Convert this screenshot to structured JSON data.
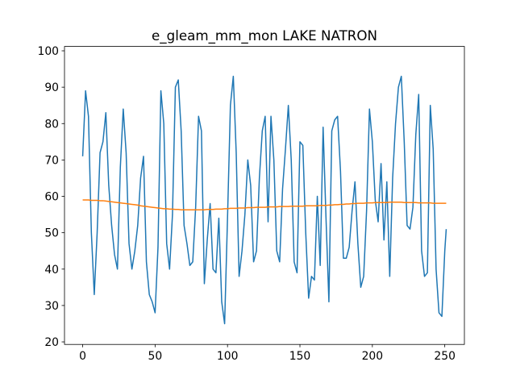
{
  "chart_data": {
    "type": "line",
    "title": "e_gleam_mm_mon LAKE NATRON",
    "x": [
      0,
      2,
      4,
      6,
      8,
      10,
      12,
      14,
      16,
      18,
      20,
      22,
      24,
      26,
      28,
      30,
      32,
      34,
      36,
      38,
      40,
      42,
      44,
      46,
      48,
      50,
      52,
      54,
      56,
      58,
      60,
      62,
      64,
      66,
      68,
      70,
      72,
      74,
      76,
      78,
      80,
      82,
      84,
      86,
      88,
      90,
      92,
      94,
      96,
      98,
      100,
      102,
      104,
      106,
      108,
      110,
      112,
      114,
      116,
      118,
      120,
      122,
      124,
      126,
      128,
      130,
      132,
      134,
      136,
      138,
      140,
      142,
      144,
      146,
      148,
      150,
      152,
      154,
      156,
      158,
      160,
      162,
      164,
      166,
      168,
      170,
      172,
      174,
      176,
      178,
      180,
      182,
      184,
      186,
      188,
      190,
      192,
      194,
      196,
      198,
      200,
      202,
      204,
      206,
      208,
      210,
      212,
      214,
      216,
      218,
      220,
      222,
      224,
      226,
      228,
      230,
      232,
      234,
      236,
      238,
      240,
      242,
      244,
      246,
      248,
      250,
      251
    ],
    "series": [
      {
        "color": "#1f77b4",
        "values": [
          71,
          89,
          82,
          50,
          33,
          50,
          72,
          75,
          83,
          63,
          52,
          44,
          40,
          68,
          84,
          72,
          47,
          40,
          45,
          52,
          65,
          71,
          42,
          33,
          31,
          28,
          46,
          89,
          80,
          47,
          40,
          55,
          90,
          92,
          78,
          52,
          47,
          41,
          42,
          57,
          82,
          78,
          36,
          48,
          58,
          40,
          39,
          54,
          31,
          25,
          54,
          85,
          93,
          72,
          38,
          45,
          55,
          70,
          63,
          42,
          45,
          65,
          78,
          82,
          53,
          82,
          70,
          45,
          42,
          62,
          73,
          85,
          70,
          42,
          39,
          75,
          74,
          50,
          32,
          38,
          37,
          60,
          41,
          79,
          54,
          31,
          78,
          81,
          82,
          67,
          43,
          43,
          46,
          56,
          64,
          47,
          35,
          38,
          56,
          84,
          75,
          59,
          53,
          69,
          48,
          64,
          38,
          65,
          80,
          90,
          93,
          75,
          52,
          51,
          57,
          77,
          88,
          45,
          38,
          39,
          85,
          73,
          40,
          28,
          27,
          45,
          51
        ]
      },
      {
        "color": "#ff7f0e",
        "values": [
          59.0,
          59.0,
          59.0,
          58.9,
          58.9,
          58.9,
          58.8,
          58.8,
          58.7,
          58.6,
          58.5,
          58.4,
          58.3,
          58.2,
          58.1,
          58.0,
          57.9,
          57.8,
          57.7,
          57.6,
          57.4,
          57.3,
          57.2,
          57.1,
          57.0,
          56.9,
          56.8,
          56.7,
          56.6,
          56.6,
          56.5,
          56.5,
          56.4,
          56.4,
          56.3,
          56.3,
          56.3,
          56.3,
          56.3,
          56.3,
          56.3,
          56.3,
          56.3,
          56.4,
          56.4,
          56.4,
          56.5,
          56.5,
          56.5,
          56.6,
          56.6,
          56.7,
          56.7,
          56.7,
          56.8,
          56.8,
          56.8,
          56.9,
          56.9,
          56.9,
          57.0,
          57.0,
          57.0,
          57.0,
          57.1,
          57.1,
          57.1,
          57.1,
          57.2,
          57.2,
          57.2,
          57.2,
          57.3,
          57.3,
          57.3,
          57.3,
          57.3,
          57.4,
          57.4,
          57.4,
          57.4,
          57.4,
          57.5,
          57.5,
          57.5,
          57.6,
          57.6,
          57.7,
          57.7,
          57.8,
          57.8,
          57.9,
          57.9,
          58.0,
          58.0,
          58.1,
          58.1,
          58.1,
          58.2,
          58.2,
          58.2,
          58.3,
          58.3,
          58.3,
          58.3,
          58.3,
          58.4,
          58.4,
          58.4,
          58.4,
          58.4,
          58.3,
          58.3,
          58.3,
          58.3,
          58.3,
          58.2,
          58.2,
          58.2,
          58.2,
          58.2,
          58.1,
          58.1,
          58.1,
          58.1,
          58.1,
          58.1
        ]
      }
    ],
    "xlim": [
      -12.55,
      263.55
    ],
    "xticks": [
      0,
      50,
      100,
      150,
      200,
      250
    ],
    "ylim": [
      19.3,
      101.2
    ],
    "yticks": [
      20,
      30,
      40,
      50,
      60,
      70,
      80,
      90,
      100
    ]
  }
}
